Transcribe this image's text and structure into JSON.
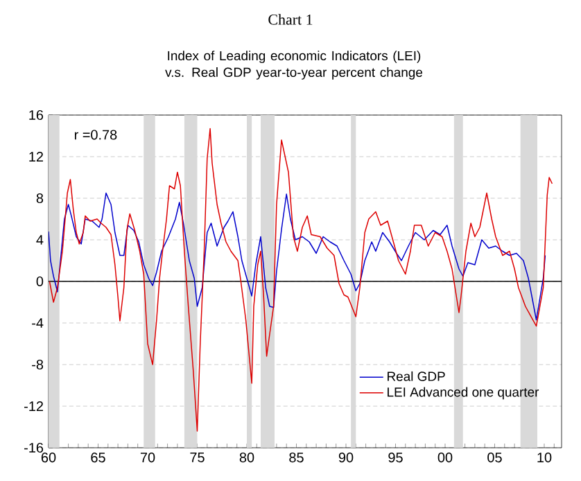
{
  "chart_data": {
    "type": "line",
    "title": "Chart 1",
    "subtitle": "Index of Leading economic Indicators (LEI) v.s. Real GDP year-to-year percent change",
    "annotations": [
      "r =0.78"
    ],
    "xlim": [
      1960,
      2011.75
    ],
    "ylim": [
      -16,
      16
    ],
    "xticks": [
      {
        "value": 1960,
        "label": "60"
      },
      {
        "value": 1961,
        "label": null
      },
      {
        "value": 1962,
        "label": null
      },
      {
        "value": 1963,
        "label": null
      },
      {
        "value": 1964,
        "label": null
      },
      {
        "value": 1965,
        "label": "65"
      },
      {
        "value": 1966,
        "label": null
      },
      {
        "value": 1967,
        "label": null
      },
      {
        "value": 1968,
        "label": null
      },
      {
        "value": 1969,
        "label": null
      },
      {
        "value": 1970,
        "label": "70"
      },
      {
        "value": 1971,
        "label": null
      },
      {
        "value": 1972,
        "label": null
      },
      {
        "value": 1973,
        "label": null
      },
      {
        "value": 1974,
        "label": null
      },
      {
        "value": 1975,
        "label": "75"
      },
      {
        "value": 1976,
        "label": null
      },
      {
        "value": 1977,
        "label": null
      },
      {
        "value": 1978,
        "label": null
      },
      {
        "value": 1979,
        "label": null
      },
      {
        "value": 1980,
        "label": "80"
      },
      {
        "value": 1981,
        "label": null
      },
      {
        "value": 1982,
        "label": null
      },
      {
        "value": 1983,
        "label": null
      },
      {
        "value": 1984,
        "label": null
      },
      {
        "value": 1985,
        "label": "85"
      },
      {
        "value": 1986,
        "label": null
      },
      {
        "value": 1987,
        "label": null
      },
      {
        "value": 1988,
        "label": null
      },
      {
        "value": 1989,
        "label": null
      },
      {
        "value": 1990,
        "label": "90"
      },
      {
        "value": 1991,
        "label": null
      },
      {
        "value": 1992,
        "label": null
      },
      {
        "value": 1993,
        "label": null
      },
      {
        "value": 1994,
        "label": null
      },
      {
        "value": 1995,
        "label": "95"
      },
      {
        "value": 1996,
        "label": null
      },
      {
        "value": 1997,
        "label": null
      },
      {
        "value": 1998,
        "label": null
      },
      {
        "value": 1999,
        "label": null
      },
      {
        "value": 2000,
        "label": "00"
      },
      {
        "value": 2001,
        "label": null
      },
      {
        "value": 2002,
        "label": null
      },
      {
        "value": 2003,
        "label": null
      },
      {
        "value": 2004,
        "label": null
      },
      {
        "value": 2005,
        "label": "05"
      },
      {
        "value": 2006,
        "label": null
      },
      {
        "value": 2007,
        "label": null
      },
      {
        "value": 2008,
        "label": null
      },
      {
        "value": 2009,
        "label": null
      },
      {
        "value": 2010,
        "label": "10"
      },
      {
        "value": 2011,
        "label": null
      }
    ],
    "yticks": [
      -16,
      -12,
      -8,
      -4,
      0,
      4,
      8,
      12,
      16
    ],
    "grid": "y",
    "legend": "bottom right",
    "line_style": "solid",
    "marker": "none",
    "ref_lines": [
      {
        "axis": "y",
        "value": 0,
        "color": "#000000"
      }
    ],
    "bands": [
      {
        "axis": "x",
        "from": 1960,
        "to": 1961.1,
        "color": "#d9d9d9"
      },
      {
        "axis": "x",
        "from": 1969.6,
        "to": 1970.75,
        "color": "#d9d9d9"
      },
      {
        "axis": "x",
        "from": 1973.7,
        "to": 1975.0,
        "color": "#d9d9d9"
      },
      {
        "axis": "x",
        "from": 1980.0,
        "to": 1980.5,
        "color": "#d9d9d9"
      },
      {
        "axis": "x",
        "from": 1981.4,
        "to": 1982.8,
        "color": "#d9d9d9"
      },
      {
        "axis": "x",
        "from": 1990.5,
        "to": 1991.0,
        "color": "#d9d9d9"
      },
      {
        "axis": "x",
        "from": 2000.9,
        "to": 2001.8,
        "color": "#d9d9d9"
      },
      {
        "axis": "x",
        "from": 2007.6,
        "to": 2009.3,
        "color": "#d9d9d9"
      }
    ],
    "series": [
      {
        "name": "Real GDP",
        "color": "#0000cc",
        "x": [
          1960.0,
          1960.2,
          1960.5,
          1960.9,
          1961.6,
          1962.0,
          1962.3,
          1962.8,
          1963.3,
          1963.7,
          1964.4,
          1965.1,
          1965.4,
          1965.8,
          1966.3,
          1966.7,
          1967.2,
          1967.6,
          1968.0,
          1968.6,
          1969.1,
          1969.6,
          1970.1,
          1970.5,
          1970.9,
          1971.4,
          1972.1,
          1972.8,
          1973.2,
          1973.6,
          1974.2,
          1974.7,
          1975.0,
          1975.5,
          1976.0,
          1976.4,
          1977.0,
          1977.7,
          1978.1,
          1978.6,
          1979.1,
          1979.5,
          1980.0,
          1980.5,
          1980.9,
          1981.4,
          1981.9,
          1982.3,
          1982.7,
          1983.0,
          1983.5,
          1984.0,
          1984.4,
          1984.9,
          1985.6,
          1986.3,
          1987.0,
          1987.7,
          1988.4,
          1989.1,
          1989.8,
          1990.5,
          1991.0,
          1991.4,
          1991.9,
          1992.6,
          1993.0,
          1993.7,
          1994.4,
          1995.1,
          1995.6,
          1996.3,
          1997.0,
          1997.9,
          1998.8,
          1999.5,
          2000.2,
          2000.7,
          2001.4,
          2001.8,
          2002.3,
          2003.0,
          2003.7,
          2004.4,
          2005.1,
          2005.8,
          2006.5,
          2007.2,
          2007.9,
          2008.4,
          2009.2,
          2009.9,
          2010.1
        ],
        "values": [
          4.8,
          2.0,
          0.5,
          -1.0,
          6.0,
          7.4,
          6.3,
          4.3,
          3.6,
          6.0,
          5.8,
          5.2,
          6.0,
          8.5,
          7.4,
          4.7,
          2.5,
          2.5,
          5.4,
          4.9,
          3.8,
          1.6,
          0.3,
          -0.4,
          0.9,
          2.9,
          4.3,
          6.0,
          7.6,
          5.6,
          2.0,
          0.3,
          -2.4,
          -0.6,
          4.7,
          5.6,
          3.4,
          5.2,
          5.8,
          6.7,
          4.3,
          2.0,
          0.3,
          -1.4,
          1.6,
          4.3,
          -0.6,
          -2.4,
          -2.5,
          1.0,
          5.0,
          8.4,
          6.0,
          4.0,
          4.3,
          3.8,
          2.7,
          4.3,
          3.8,
          3.4,
          2.0,
          0.7,
          -0.9,
          -0.2,
          2.0,
          3.8,
          2.9,
          4.7,
          3.8,
          2.7,
          2.0,
          3.4,
          4.7,
          4.0,
          4.9,
          4.5,
          5.4,
          3.4,
          1.2,
          0.5,
          1.8,
          1.6,
          4.0,
          3.2,
          3.4,
          2.9,
          2.5,
          2.7,
          2.0,
          0.3,
          -3.7,
          0.3,
          2.5
        ]
      },
      {
        "name": "LEI Advanced one quarter",
        "color": "#dd0000",
        "x": [
          1960.1,
          1960.5,
          1960.9,
          1961.4,
          1961.9,
          1962.2,
          1962.5,
          1962.8,
          1963.1,
          1963.5,
          1963.7,
          1964.2,
          1964.9,
          1965.3,
          1965.8,
          1966.3,
          1966.7,
          1967.0,
          1967.2,
          1967.6,
          1967.9,
          1968.2,
          1968.7,
          1969.2,
          1969.6,
          1970.0,
          1970.5,
          1970.9,
          1971.2,
          1971.5,
          1971.9,
          1972.2,
          1972.7,
          1973.0,
          1973.3,
          1973.7,
          1974.1,
          1974.6,
          1975.0,
          1975.3,
          1975.7,
          1976.0,
          1976.3,
          1976.5,
          1977.0,
          1977.4,
          1977.9,
          1978.4,
          1979.1,
          1979.4,
          1979.9,
          1980.5,
          1980.7,
          1981.1,
          1981.4,
          1981.7,
          1982.0,
          1982.3,
          1982.7,
          1983.0,
          1983.5,
          1984.2,
          1984.7,
          1985.1,
          1985.6,
          1986.1,
          1986.5,
          1987.4,
          1988.1,
          1988.8,
          1989.3,
          1989.8,
          1990.2,
          1991.0,
          1991.4,
          1991.9,
          1992.3,
          1993.0,
          1993.5,
          1994.2,
          1994.9,
          1995.3,
          1996.0,
          1996.5,
          1996.9,
          1997.6,
          1998.3,
          1999.0,
          1999.7,
          2000.2,
          2000.7,
          2001.4,
          2001.6,
          2002.1,
          2002.6,
          2003.0,
          2003.5,
          2004.2,
          2004.7,
          2005.1,
          2005.8,
          2006.5,
          2007.0,
          2007.4,
          2008.1,
          2009.2,
          2009.9,
          2010.3,
          2010.5,
          2010.8
        ],
        "values": [
          0.0,
          -2.0,
          -0.6,
          2.9,
          8.5,
          9.8,
          6.9,
          4.7,
          3.6,
          4.7,
          6.3,
          5.8,
          6.0,
          5.6,
          5.2,
          4.5,
          1.6,
          -1.5,
          -3.8,
          -0.6,
          4.9,
          6.5,
          4.9,
          2.9,
          0.7,
          -6.0,
          -8.0,
          -3.7,
          0.3,
          2.9,
          6.0,
          9.2,
          8.9,
          10.5,
          9.2,
          2.9,
          -2.4,
          -8.6,
          -14.4,
          -6.0,
          2.9,
          11.8,
          14.7,
          11.4,
          7.4,
          5.6,
          3.8,
          2.9,
          2.0,
          0.0,
          -3.7,
          -9.8,
          -2.4,
          1.6,
          2.9,
          -1.5,
          -7.2,
          -5.1,
          -2.4,
          7.4,
          13.6,
          10.5,
          4.3,
          2.9,
          5.2,
          6.3,
          4.5,
          4.3,
          3.2,
          2.5,
          -0.2,
          -1.3,
          -1.5,
          -3.4,
          -0.6,
          4.7,
          6.0,
          6.7,
          5.4,
          5.8,
          3.4,
          2.0,
          0.7,
          2.9,
          5.4,
          5.4,
          3.4,
          4.7,
          4.3,
          2.9,
          1.2,
          -3.0,
          -1.5,
          2.9,
          5.6,
          4.3,
          5.2,
          8.5,
          6.0,
          4.3,
          2.5,
          2.9,
          1.2,
          -0.6,
          -2.4,
          -4.3,
          -0.6,
          8.3,
          10.0,
          9.4
        ]
      }
    ]
  }
}
